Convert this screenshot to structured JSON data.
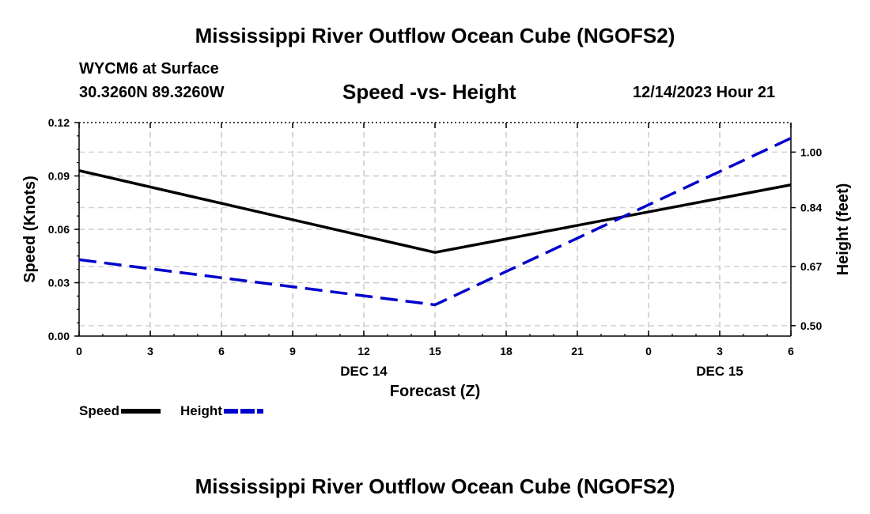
{
  "header": {
    "title": "Mississippi River Outflow Ocean Cube (NGOFS2)",
    "station": "WYCM6 at Surface",
    "coordinates": "30.3260N  89.3260W",
    "subtitle": "Speed -vs- Height",
    "datetime": "12/14/2023 Hour 21"
  },
  "footer": {
    "title": "Mississippi River Outflow Ocean Cube (NGOFS2)"
  },
  "chart_data": {
    "type": "line",
    "title": "Speed -vs- Height",
    "xlabel": "Forecast (Z)",
    "ylabel": "Speed (Knots)",
    "y2label": "Height (feet)",
    "x": [
      0,
      15,
      30
    ],
    "x_tick_labels": [
      "0",
      "3",
      "6",
      "9",
      "12",
      "15",
      "18",
      "21",
      "0",
      "3",
      "6"
    ],
    "x_date_labels": [
      {
        "label": "DEC 14",
        "x": 12
      },
      {
        "label": "DEC 15",
        "x": 27
      }
    ],
    "xlim": [
      0,
      30
    ],
    "ylim": [
      0,
      0.12
    ],
    "y_ticks": [
      "0.00",
      "0.03",
      "0.06",
      "0.09",
      "0.12"
    ],
    "y2lim": [
      0.47,
      1.085
    ],
    "y2_ticks": [
      {
        "value": 0.5,
        "label": "0.50"
      },
      {
        "value": 0.67,
        "label": "0.67"
      },
      {
        "value": 0.84,
        "label": "0.84"
      },
      {
        "value": 1.0,
        "label": "1.00"
      }
    ],
    "grid": true,
    "series": [
      {
        "name": "Speed",
        "axis": "left",
        "style": "solid",
        "color": "#000000",
        "values": [
          0.093,
          0.047,
          0.085
        ]
      },
      {
        "name": "Height",
        "axis": "right",
        "style": "dashed",
        "color": "#0000cc",
        "values": [
          0.69,
          0.56,
          1.04
        ]
      }
    ],
    "legend_position": "bottom-left"
  }
}
